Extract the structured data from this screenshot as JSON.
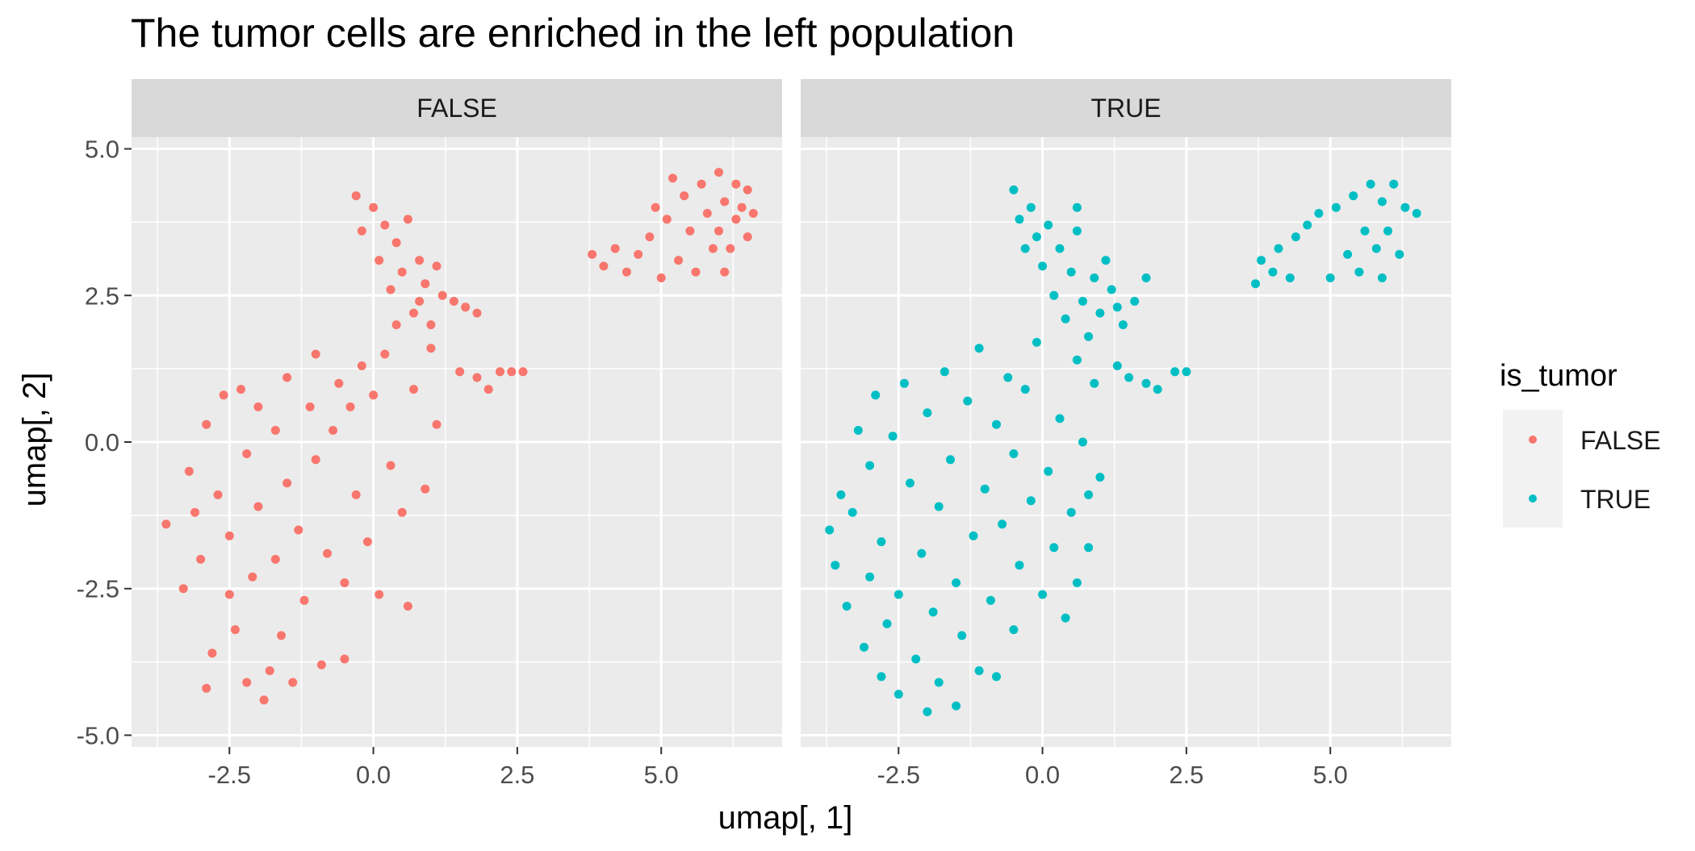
{
  "chart_data": {
    "type": "scatter",
    "title": "The tumor cells are enriched in the left population",
    "xlabel": "umap[, 1]",
    "ylabel": "umap[, 2]",
    "xlim": [
      -4.2,
      7.1
    ],
    "ylim": [
      -5.2,
      5.2
    ],
    "x_ticks": [
      -2.5,
      0.0,
      2.5,
      5.0
    ],
    "x_tick_labels": [
      "-2.5",
      "0.0",
      "2.5",
      "5.0"
    ],
    "y_ticks": [
      -5.0,
      -2.5,
      0.0,
      2.5,
      5.0
    ],
    "y_tick_labels": [
      "-5.0",
      "-2.5",
      "0.0",
      "2.5",
      "5.0"
    ],
    "grid": true,
    "legend": {
      "title": "is_tumor",
      "placement": "right",
      "entries": [
        {
          "label": "FALSE",
          "color": "#F8766D"
        },
        {
          "label": "TRUE",
          "color": "#00BFC4"
        }
      ]
    },
    "facets": [
      {
        "label": "FALSE",
        "color": "#F8766D",
        "points": [
          [
            -3.6,
            -1.4
          ],
          [
            -3.3,
            -2.5
          ],
          [
            -3.2,
            -0.5
          ],
          [
            -3.1,
            -1.2
          ],
          [
            -3.0,
            -2.0
          ],
          [
            -2.9,
            0.3
          ],
          [
            -2.9,
            -4.2
          ],
          [
            -2.8,
            -3.6
          ],
          [
            -2.7,
            -0.9
          ],
          [
            -2.6,
            0.8
          ],
          [
            -2.5,
            -1.6
          ],
          [
            -2.5,
            -2.6
          ],
          [
            -2.4,
            -3.2
          ],
          [
            -2.3,
            0.9
          ],
          [
            -2.2,
            -0.2
          ],
          [
            -2.2,
            -4.1
          ],
          [
            -2.1,
            -2.3
          ],
          [
            -2.0,
            0.6
          ],
          [
            -2.0,
            -1.1
          ],
          [
            -1.9,
            -4.4
          ],
          [
            -1.8,
            -3.9
          ],
          [
            -1.7,
            0.2
          ],
          [
            -1.7,
            -2.0
          ],
          [
            -1.6,
            -3.3
          ],
          [
            -1.5,
            1.1
          ],
          [
            -1.5,
            -0.7
          ],
          [
            -1.4,
            -4.1
          ],
          [
            -1.3,
            -1.5
          ],
          [
            -1.2,
            -2.7
          ],
          [
            -1.1,
            0.6
          ],
          [
            -1.0,
            -0.3
          ],
          [
            -1.0,
            1.5
          ],
          [
            -0.9,
            -3.8
          ],
          [
            -0.8,
            -1.9
          ],
          [
            -0.7,
            0.2
          ],
          [
            -0.6,
            1.0
          ],
          [
            -0.5,
            -2.4
          ],
          [
            -0.5,
            -3.7
          ],
          [
            -0.4,
            0.6
          ],
          [
            -0.3,
            -0.9
          ],
          [
            -0.2,
            1.3
          ],
          [
            -0.1,
            -1.7
          ],
          [
            0.0,
            0.8
          ],
          [
            0.1,
            -2.6
          ],
          [
            0.2,
            1.5
          ],
          [
            0.3,
            -0.4
          ],
          [
            0.4,
            2.0
          ],
          [
            0.5,
            -1.2
          ],
          [
            0.6,
            -2.8
          ],
          [
            0.7,
            0.9
          ],
          [
            0.8,
            2.4
          ],
          [
            0.9,
            -0.8
          ],
          [
            1.0,
            1.6
          ],
          [
            1.1,
            0.3
          ],
          [
            -0.3,
            4.2
          ],
          [
            -0.2,
            3.6
          ],
          [
            0.0,
            4.0
          ],
          [
            0.1,
            3.1
          ],
          [
            0.2,
            3.7
          ],
          [
            0.3,
            2.6
          ],
          [
            0.4,
            3.4
          ],
          [
            0.5,
            2.9
          ],
          [
            0.6,
            3.8
          ],
          [
            0.7,
            2.2
          ],
          [
            0.8,
            3.1
          ],
          [
            0.9,
            2.7
          ],
          [
            1.0,
            2.0
          ],
          [
            1.1,
            3.0
          ],
          [
            1.2,
            2.5
          ],
          [
            1.4,
            2.4
          ],
          [
            1.6,
            2.3
          ],
          [
            1.8,
            2.2
          ],
          [
            1.5,
            1.2
          ],
          [
            1.8,
            1.1
          ],
          [
            2.0,
            0.9
          ],
          [
            2.2,
            1.2
          ],
          [
            2.4,
            1.2
          ],
          [
            2.6,
            1.2
          ],
          [
            3.8,
            3.2
          ],
          [
            4.0,
            3.0
          ],
          [
            4.2,
            3.3
          ],
          [
            4.4,
            2.9
          ],
          [
            4.6,
            3.2
          ],
          [
            4.8,
            3.5
          ],
          [
            5.0,
            2.8
          ],
          [
            5.1,
            3.8
          ],
          [
            5.3,
            3.1
          ],
          [
            5.4,
            4.2
          ],
          [
            5.5,
            3.6
          ],
          [
            5.6,
            2.9
          ],
          [
            5.7,
            4.4
          ],
          [
            5.8,
            3.9
          ],
          [
            5.9,
            3.3
          ],
          [
            6.0,
            4.6
          ],
          [
            6.0,
            3.6
          ],
          [
            6.1,
            4.1
          ],
          [
            6.2,
            3.3
          ],
          [
            6.3,
            4.4
          ],
          [
            6.3,
            3.8
          ],
          [
            6.4,
            4.0
          ],
          [
            6.5,
            3.5
          ],
          [
            6.5,
            4.3
          ],
          [
            6.6,
            3.9
          ],
          [
            5.2,
            4.5
          ],
          [
            4.9,
            4.0
          ],
          [
            6.1,
            2.9
          ]
        ]
      },
      {
        "label": "TRUE",
        "color": "#00BFC4",
        "points": [
          [
            -3.7,
            -1.5
          ],
          [
            -3.6,
            -2.1
          ],
          [
            -3.5,
            -0.9
          ],
          [
            -3.4,
            -2.8
          ],
          [
            -3.3,
            -1.2
          ],
          [
            -3.2,
            0.2
          ],
          [
            -3.1,
            -3.5
          ],
          [
            -3.0,
            -0.4
          ],
          [
            -3.0,
            -2.3
          ],
          [
            -2.9,
            0.8
          ],
          [
            -2.8,
            -4.0
          ],
          [
            -2.8,
            -1.7
          ],
          [
            -2.7,
            -3.1
          ],
          [
            -2.6,
            0.1
          ],
          [
            -2.5,
            -2.6
          ],
          [
            -2.5,
            -4.3
          ],
          [
            -2.4,
            1.0
          ],
          [
            -2.3,
            -0.7
          ],
          [
            -2.2,
            -3.7
          ],
          [
            -2.1,
            -1.9
          ],
          [
            -2.0,
            -4.6
          ],
          [
            -2.0,
            0.5
          ],
          [
            -1.9,
            -2.9
          ],
          [
            -1.8,
            -1.1
          ],
          [
            -1.8,
            -4.1
          ],
          [
            -1.7,
            1.2
          ],
          [
            -1.6,
            -0.3
          ],
          [
            -1.5,
            -2.4
          ],
          [
            -1.5,
            -4.5
          ],
          [
            -1.4,
            -3.3
          ],
          [
            -1.3,
            0.7
          ],
          [
            -1.2,
            -1.6
          ],
          [
            -1.1,
            -3.9
          ],
          [
            -1.1,
            1.6
          ],
          [
            -1.0,
            -0.8
          ],
          [
            -0.9,
            -2.7
          ],
          [
            -0.8,
            0.3
          ],
          [
            -0.8,
            -4.0
          ],
          [
            -0.7,
            -1.4
          ],
          [
            -0.6,
            1.1
          ],
          [
            -0.5,
            -3.2
          ],
          [
            -0.5,
            -0.2
          ],
          [
            -0.4,
            -2.1
          ],
          [
            -0.3,
            0.9
          ],
          [
            -0.2,
            -1.0
          ],
          [
            -0.1,
            1.7
          ],
          [
            0.0,
            -2.6
          ],
          [
            0.1,
            -0.5
          ],
          [
            0.2,
            -1.8
          ],
          [
            0.3,
            0.4
          ],
          [
            0.4,
            -3.0
          ],
          [
            0.5,
            -1.2
          ],
          [
            0.6,
            1.4
          ],
          [
            0.6,
            -2.4
          ],
          [
            0.7,
            0.0
          ],
          [
            0.8,
            -0.9
          ],
          [
            0.8,
            -1.8
          ],
          [
            0.9,
            1.0
          ],
          [
            1.0,
            -0.6
          ],
          [
            -0.5,
            4.3
          ],
          [
            -0.4,
            3.8
          ],
          [
            -0.3,
            3.3
          ],
          [
            -0.2,
            4.0
          ],
          [
            -0.1,
            3.5
          ],
          [
            0.0,
            3.0
          ],
          [
            0.1,
            3.7
          ],
          [
            0.2,
            2.5
          ],
          [
            0.3,
            3.3
          ],
          [
            0.4,
            2.1
          ],
          [
            0.5,
            2.9
          ],
          [
            0.6,
            3.6
          ],
          [
            0.7,
            2.4
          ],
          [
            0.8,
            1.8
          ],
          [
            0.9,
            2.8
          ],
          [
            1.0,
            2.2
          ],
          [
            1.1,
            3.1
          ],
          [
            1.2,
            2.6
          ],
          [
            1.3,
            2.3
          ],
          [
            1.4,
            2.0
          ],
          [
            1.6,
            2.4
          ],
          [
            1.8,
            2.8
          ],
          [
            0.6,
            4.0
          ],
          [
            1.3,
            1.3
          ],
          [
            1.5,
            1.1
          ],
          [
            1.8,
            1.0
          ],
          [
            2.0,
            0.9
          ],
          [
            2.3,
            1.2
          ],
          [
            2.5,
            1.2
          ],
          [
            3.7,
            2.7
          ],
          [
            3.8,
            3.1
          ],
          [
            4.0,
            2.9
          ],
          [
            4.1,
            3.3
          ],
          [
            4.3,
            2.8
          ],
          [
            4.4,
            3.5
          ],
          [
            4.6,
            3.7
          ],
          [
            4.8,
            3.9
          ],
          [
            5.0,
            2.8
          ],
          [
            5.1,
            4.0
          ],
          [
            5.3,
            3.2
          ],
          [
            5.4,
            4.2
          ],
          [
            5.5,
            2.9
          ],
          [
            5.6,
            3.6
          ],
          [
            5.7,
            4.4
          ],
          [
            5.8,
            3.3
          ],
          [
            5.9,
            4.1
          ],
          [
            6.0,
            3.6
          ],
          [
            6.1,
            4.4
          ],
          [
            6.2,
            3.2
          ],
          [
            6.3,
            4.0
          ],
          [
            6.5,
            3.9
          ],
          [
            5.9,
            2.8
          ]
        ]
      }
    ]
  }
}
